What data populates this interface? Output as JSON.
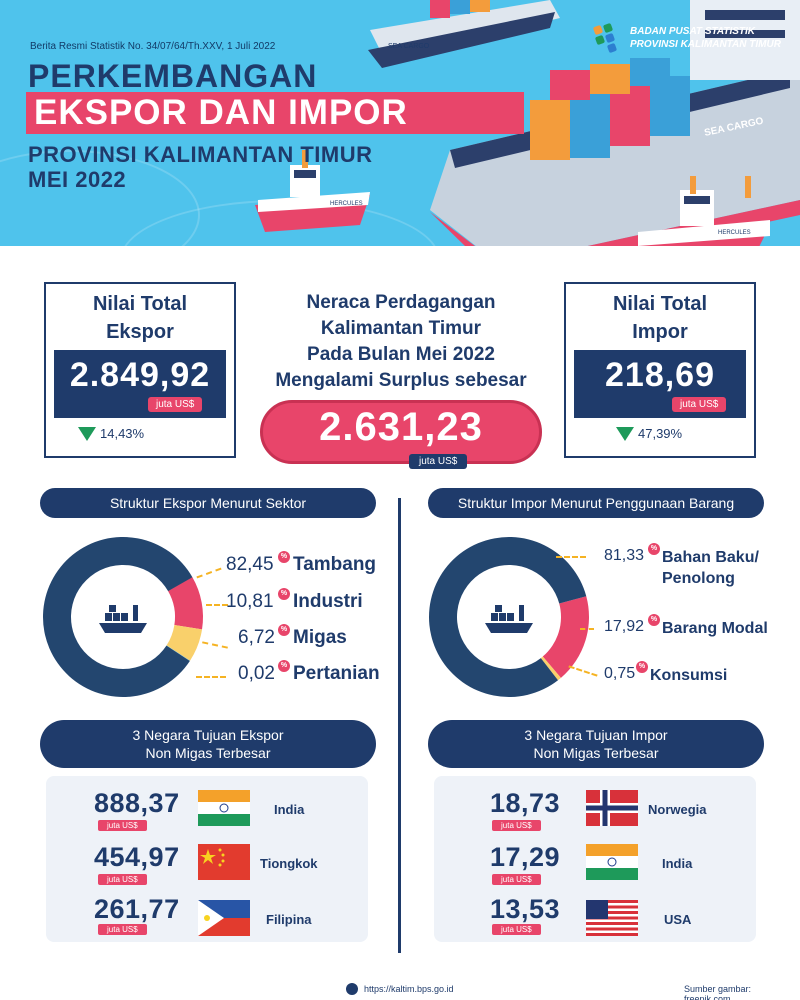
{
  "header": {
    "release": "Berita Resmi Statistik No. 34/07/64/Th.XXV, 1 Juli 2022",
    "title_line1": "PERKEMBANGAN",
    "title_line2": "EKSPOR DAN IMPOR",
    "title_line3": "PROVINSI KALIMANTAN TIMUR",
    "title_line4": "MEI 2022",
    "org_line1": "BADAN PUSAT STATISTIK",
    "org_line2": "PROVINSI KALIMANTAN TIMUR",
    "ship_label": "SEA CARGO",
    "ship_label_small": "SEA CARGO",
    "tug_label": "HERCULES"
  },
  "export_total": {
    "label_line1": "Nilai Total",
    "label_line2": "Ekspor",
    "value": "2.849,92",
    "unit": "juta US$",
    "change": "14,43%",
    "direction": "down"
  },
  "import_total": {
    "label_line1": "Nilai Total",
    "label_line2": "Impor",
    "value": "218,69",
    "unit": "juta US$",
    "change": "47,39%",
    "direction": "down"
  },
  "balance": {
    "line1": "Neraca Perdagangan",
    "line2": "Kalimantan Timur",
    "line3": "Pada Bulan Mei 2022",
    "line4": "Mengalami Surplus sebesar",
    "value": "2.631,23",
    "unit": "juta US$"
  },
  "export_structure": {
    "title": "Struktur Ekspor Menurut Sektor",
    "items": [
      {
        "value": "82,45",
        "name": "Tambang",
        "share": 82.45,
        "color": "#23466f"
      },
      {
        "value": "10,81",
        "name": "Industri",
        "share": 10.81,
        "color": "#e8456a"
      },
      {
        "value": "6,72",
        "name": "Migas",
        "share": 6.72,
        "color": "#f9d06b"
      },
      {
        "value": "0,02",
        "name": "Pertanian",
        "share": 0.02,
        "color": "#4fc3ec"
      }
    ]
  },
  "import_structure": {
    "title": "Struktur Impor Menurut Penggunaan Barang",
    "items": [
      {
        "value": "81,33",
        "name_line1": "Bahan Baku/",
        "name_line2": "Penolong",
        "share": 81.33,
        "color": "#23466f"
      },
      {
        "value": "17,92",
        "name_line1": "Barang Modal",
        "name_line2": "",
        "share": 17.92,
        "color": "#e8456a"
      },
      {
        "value": "0,75",
        "name_line1": "Konsumsi",
        "name_line2": "",
        "share": 0.75,
        "color": "#f9d06b"
      }
    ]
  },
  "pct_symbol": "%",
  "export_countries": {
    "title_line1": "3 Negara Tujuan Ekspor",
    "title_line2": "Non Migas Terbesar",
    "unit": "juta US$",
    "items": [
      {
        "value": "888,37",
        "name": "India",
        "flag": "india-flag"
      },
      {
        "value": "454,97",
        "name": "Tiongkok",
        "flag": "china-flag"
      },
      {
        "value": "261,77",
        "name": "Filipina",
        "flag": "philippines-flag"
      }
    ]
  },
  "import_countries": {
    "title_line1": "3 Negara Tujuan Impor",
    "title_line2": "Non Migas Terbesar",
    "unit": "juta US$",
    "items": [
      {
        "value": "18,73",
        "name": "Norwegia",
        "flag": "norway-flag"
      },
      {
        "value": "17,29",
        "name": "India",
        "flag": "india-flag"
      },
      {
        "value": "13,53",
        "name": "USA",
        "flag": "usa-flag"
      }
    ]
  },
  "footer": {
    "url": "https://kaltim.bps.go.id",
    "source": "Sumber gambar: freepik.com"
  },
  "colors": {
    "navy": "#1f3b6b",
    "pink": "#e8456a",
    "sky": "#4fc3ec",
    "yellow": "#f9d06b",
    "green": "#1e9a5a"
  }
}
